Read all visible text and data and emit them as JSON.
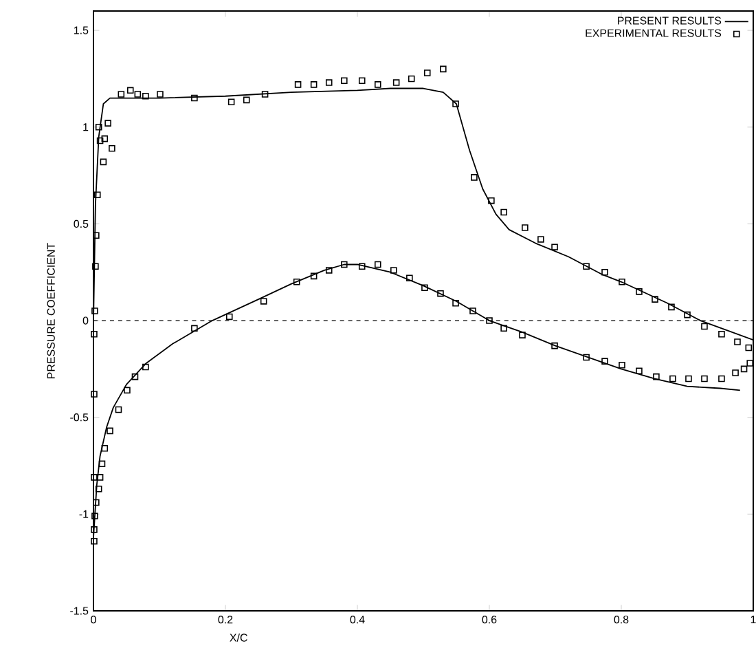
{
  "chart_data": {
    "type": "line",
    "xlabel": "X/C",
    "ylabel": "PRESSURE COEFFICIENT",
    "xlim": [
      0,
      1
    ],
    "ylim": [
      -1.5,
      1.6
    ],
    "xticks": [
      0,
      0.2,
      0.4,
      0.6,
      0.8,
      1
    ],
    "yticks": [
      -1.5,
      -1,
      -0.5,
      0,
      0.5,
      1,
      1.5
    ],
    "grid": false,
    "legend": "top right",
    "ref_lines": [
      {
        "axis": "y",
        "value": 0,
        "color": "#000000",
        "line_style": "dashed"
      }
    ],
    "series": [
      {
        "name": "PRESENT RESULTS",
        "type": "line",
        "color": "#000000",
        "line_style": "solid",
        "marker": "none",
        "x": [
          0.98,
          0.95,
          0.9,
          0.85,
          0.8,
          0.75,
          0.7,
          0.65,
          0.6,
          0.55,
          0.5,
          0.45,
          0.4,
          0.38,
          0.35,
          0.3,
          0.25,
          0.18,
          0.12,
          0.08,
          0.05,
          0.03,
          0.02,
          0.01,
          0.005,
          0,
          0,
          0.003,
          0.008,
          0.015,
          0.025,
          0.1,
          0.2,
          0.3,
          0.4,
          0.45,
          0.5,
          0.53,
          0.55,
          0.57,
          0.59,
          0.61,
          0.63,
          0.67,
          0.72,
          0.77,
          0.8,
          0.87,
          0.92,
          0.96,
          1.0
        ],
        "values": [
          -0.36,
          -0.35,
          -0.34,
          -0.3,
          -0.25,
          -0.19,
          -0.13,
          -0.06,
          0.0,
          0.1,
          0.18,
          0.25,
          0.29,
          0.29,
          0.26,
          0.19,
          0.11,
          0.0,
          -0.12,
          -0.22,
          -0.33,
          -0.45,
          -0.55,
          -0.7,
          -0.85,
          -1.12,
          0.0,
          0.6,
          0.95,
          1.12,
          1.15,
          1.15,
          1.16,
          1.18,
          1.19,
          1.2,
          1.2,
          1.18,
          1.12,
          0.88,
          0.68,
          0.55,
          0.47,
          0.4,
          0.33,
          0.24,
          0.2,
          0.09,
          0.0,
          -0.05,
          -0.1
        ]
      },
      {
        "name": "EXPERIMENTAL RESULTS",
        "type": "scatter",
        "color": "#000000",
        "marker": "square",
        "x": [
          0.002,
          0.003,
          0.004,
          0.006,
          0.008,
          0.01,
          0.015,
          0.017,
          0.022,
          0.028,
          0.042,
          0.056,
          0.067,
          0.079,
          0.101,
          0.153,
          0.209,
          0.232,
          0.26,
          0.31,
          0.334,
          0.357,
          0.38,
          0.407,
          0.431,
          0.459,
          0.482,
          0.506,
          0.53,
          0.549,
          0.577,
          0.603,
          0.622,
          0.654,
          0.678,
          0.699,
          0.747,
          0.775,
          0.801,
          0.827,
          0.851,
          0.876,
          0.9,
          0.926,
          0.952,
          0.976,
          0.993,
          0.995,
          0.986,
          0.973,
          0.952,
          0.926,
          0.902,
          0.878,
          0.853,
          0.827,
          0.801,
          0.775,
          0.747,
          0.699,
          0.65,
          0.622,
          0.6,
          0.575,
          0.549,
          0.526,
          0.502,
          0.479,
          0.455,
          0.431,
          0.407,
          0.38,
          0.357,
          0.334,
          0.308,
          0.258,
          0.206,
          0.153,
          0.079,
          0.063,
          0.051,
          0.038,
          0.025,
          0.017,
          0.013,
          0.01,
          0.008,
          0.004,
          0.002,
          0.001,
          0.001,
          0.001,
          0.001,
          0.001
        ],
        "values": [
          0.05,
          0.28,
          0.44,
          0.65,
          1.0,
          0.93,
          0.82,
          0.94,
          1.02,
          0.89,
          1.17,
          1.19,
          1.17,
          1.16,
          1.17,
          1.15,
          1.13,
          1.14,
          1.17,
          1.22,
          1.22,
          1.23,
          1.24,
          1.24,
          1.22,
          1.23,
          1.25,
          1.28,
          1.3,
          1.12,
          0.74,
          0.62,
          0.56,
          0.48,
          0.42,
          0.38,
          0.28,
          0.25,
          0.2,
          0.15,
          0.11,
          0.07,
          0.03,
          -0.03,
          -0.07,
          -0.11,
          -0.14,
          -0.22,
          -0.25,
          -0.27,
          -0.3,
          -0.3,
          -0.3,
          -0.3,
          -0.29,
          -0.26,
          -0.23,
          -0.21,
          -0.19,
          -0.13,
          -0.075,
          -0.04,
          0.0,
          0.05,
          0.09,
          0.14,
          0.17,
          0.22,
          0.26,
          0.29,
          0.28,
          0.29,
          0.26,
          0.23,
          0.2,
          0.1,
          0.02,
          -0.04,
          -0.24,
          -0.29,
          -0.36,
          -0.46,
          -0.57,
          -0.66,
          -0.74,
          -0.81,
          -0.87,
          -0.94,
          -1.01,
          -1.08,
          -1.14,
          -0.81,
          -0.38,
          -0.07
        ]
      }
    ]
  }
}
